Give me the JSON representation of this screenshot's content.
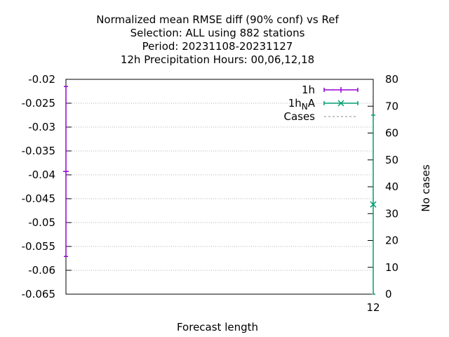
{
  "chart_data": {
    "type": "line",
    "title_lines": [
      "Normalized mean RMSE diff (90% conf) vs Ref",
      "Selection: ALL using   882 stations",
      "Period: 20231108-20231127",
      "12h Precipitation   Hours:  00,06,12,18"
    ],
    "xlabel": "Forecast length",
    "ylabel": "",
    "y2label": "No cases",
    "x_ticks": [
      "12"
    ],
    "y_ticks": [
      "-0.02",
      "-0.025",
      "-0.03",
      "-0.035",
      "-0.04",
      "-0.045",
      "-0.05",
      "-0.055",
      "-0.06",
      "-0.065"
    ],
    "y2_ticks": [
      "80",
      "70",
      "60",
      "50",
      "40",
      "30",
      "20",
      "10",
      "0"
    ],
    "ylim": [
      -0.065,
      -0.02
    ],
    "y2lim": [
      0,
      80
    ],
    "grid": true,
    "legend_position": "top-right",
    "series": [
      {
        "name": "1h",
        "color": "#9400d3",
        "marker": "plus",
        "x": [
          "12"
        ],
        "y": [
          -0.0393
        ],
        "ci_low": [
          -0.0571
        ],
        "ci_high": [
          -0.0215
        ],
        "x_offset": "left-edge"
      },
      {
        "name": "1h_NA",
        "legend_text": "1h",
        "legend_sub": "N",
        "legend_suffix": "A",
        "color": "#009e73",
        "marker": "cross",
        "x": [
          "12"
        ],
        "y": [
          -0.0462
        ],
        "ci_low": [
          -0.065
        ],
        "ci_high": [
          -0.0275
        ],
        "x_offset": "right-edge"
      },
      {
        "name": "Cases",
        "color": "#a0a0a0",
        "style": "dashed",
        "axis": "y2",
        "x": [
          "12"
        ],
        "y": [
          0
        ]
      }
    ]
  }
}
